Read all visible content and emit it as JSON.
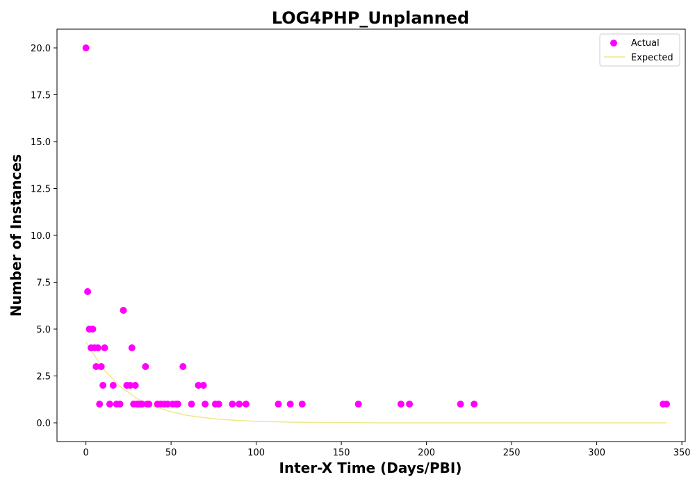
{
  "chart_data": {
    "type": "scatter",
    "title": "LOG4PHP_Unplanned",
    "xlabel": "Inter-X Time (Days/PBI)",
    "ylabel": "Number of Instances",
    "xlim": [
      -17,
      352
    ],
    "ylim": [
      -1.0,
      21.0
    ],
    "xticks": [
      0,
      50,
      100,
      150,
      200,
      250,
      300,
      350
    ],
    "yticks": [
      0.0,
      2.5,
      5.0,
      7.5,
      10.0,
      12.5,
      15.0,
      17.5,
      20.0
    ],
    "xtick_labels": [
      "0",
      "50",
      "100",
      "150",
      "200",
      "250",
      "300",
      "350"
    ],
    "ytick_labels": [
      "0.0",
      "2.5",
      "5.0",
      "7.5",
      "10.0",
      "12.5",
      "15.0",
      "17.5",
      "20.0"
    ],
    "grid": false,
    "legend_position": "top-right",
    "series": [
      {
        "name": "Actual",
        "kind": "scatter",
        "color": "#ff00ff",
        "x": [
          0,
          1,
          2,
          3,
          4,
          5,
          6,
          7,
          8,
          9,
          10,
          11,
          14,
          16,
          18,
          20,
          22,
          24,
          26,
          27,
          28,
          29,
          30,
          31,
          32,
          33,
          35,
          36,
          37,
          42,
          44,
          46,
          48,
          51,
          53,
          54,
          57,
          62,
          66,
          69,
          70,
          76,
          78,
          86,
          90,
          94,
          113,
          120,
          127,
          160,
          185,
          190,
          220,
          228,
          339,
          341
        ],
        "y": [
          20,
          7,
          5,
          4,
          5,
          4,
          3,
          4,
          1,
          3,
          2,
          4,
          1,
          2,
          1,
          1,
          6,
          2,
          2,
          4,
          1,
          2,
          1,
          1,
          1,
          1,
          3,
          1,
          1,
          1,
          1,
          1,
          1,
          1,
          1,
          1,
          3,
          1,
          2,
          2,
          1,
          1,
          1,
          1,
          1,
          1,
          1,
          1,
          1,
          1,
          1,
          1,
          1,
          1,
          1,
          1
        ]
      },
      {
        "name": "Expected",
        "kind": "line",
        "color": "#f0e68c",
        "x": [
          0,
          10,
          20,
          30,
          40,
          50,
          60,
          70,
          80,
          90,
          100,
          125,
          150,
          175,
          200,
          250,
          300,
          341
        ],
        "y": [
          4.3,
          2.89,
          1.94,
          1.3,
          0.87,
          0.59,
          0.39,
          0.27,
          0.18,
          0.12,
          0.08,
          0.03,
          0.01,
          0.0,
          0.0,
          0.0,
          0.0,
          0.0
        ]
      }
    ]
  }
}
